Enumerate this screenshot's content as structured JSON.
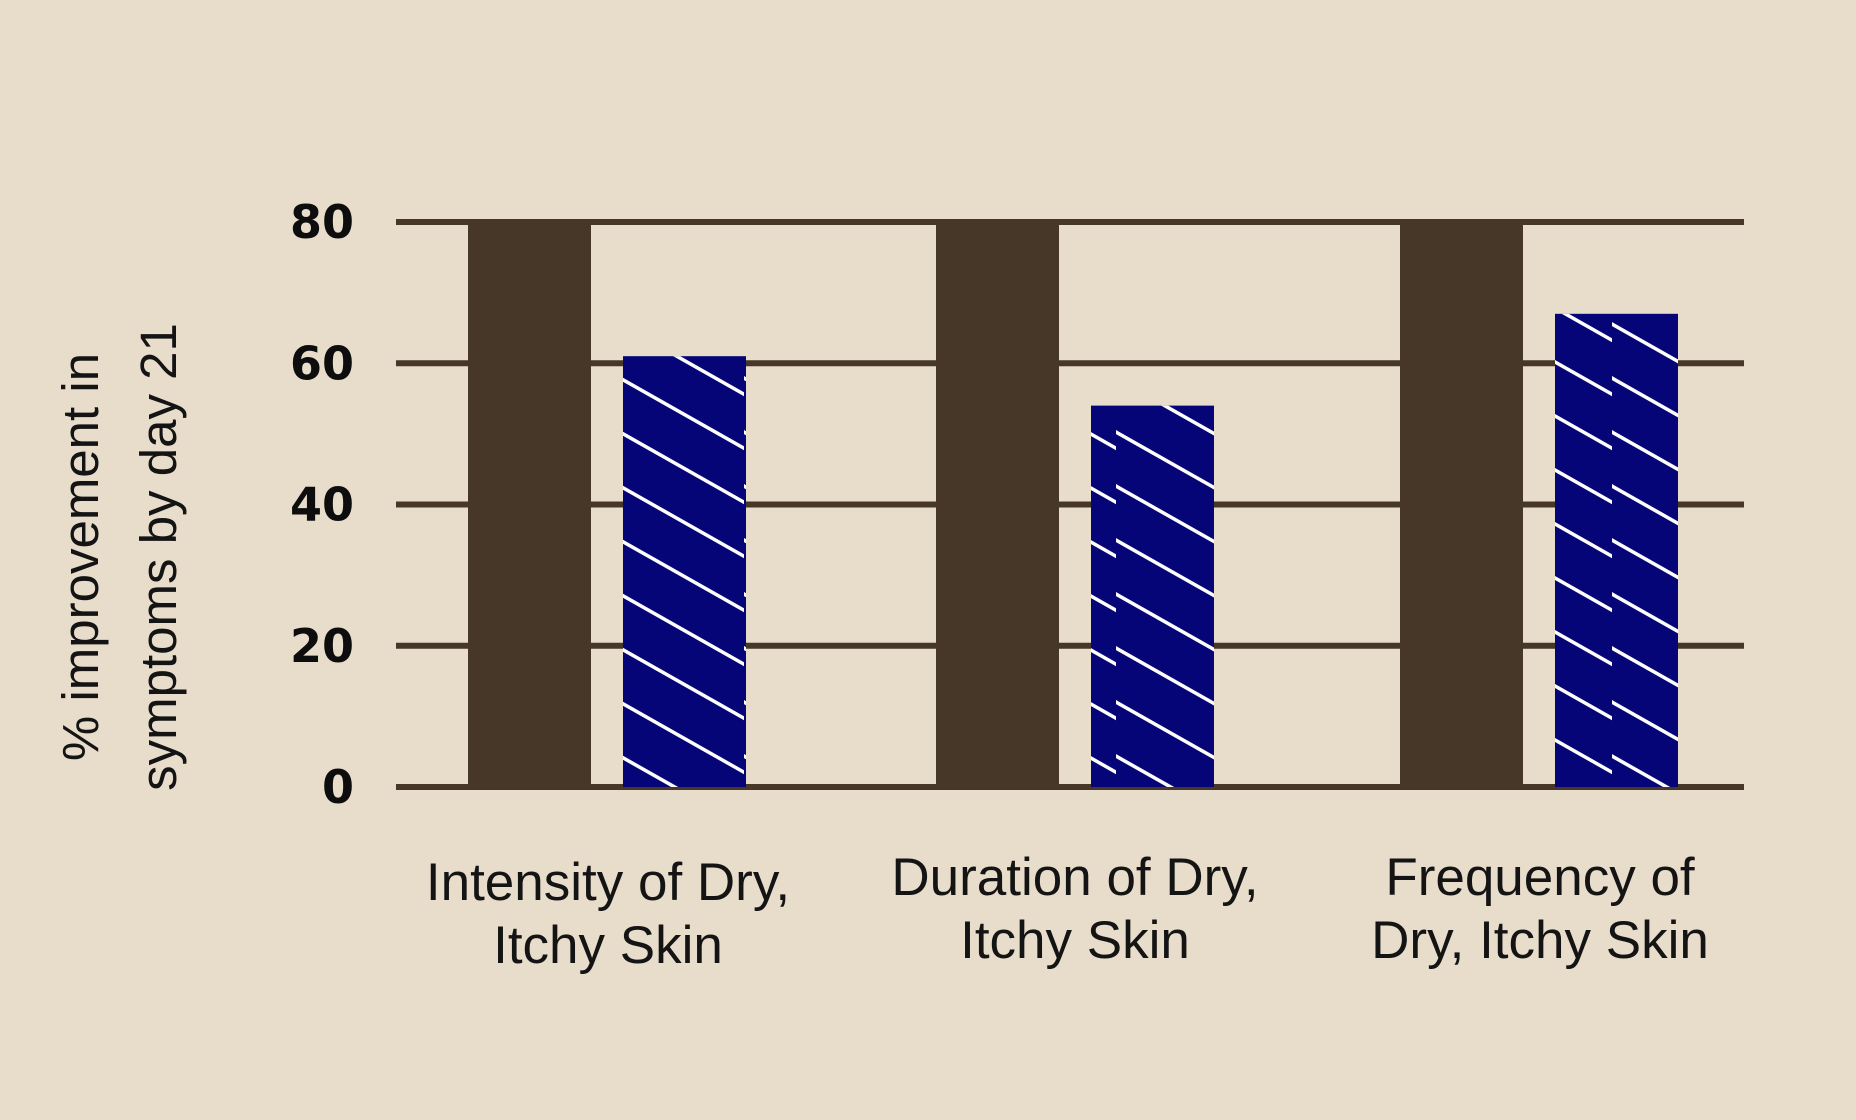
{
  "chart_data": {
    "type": "bar",
    "ylabel_lines": [
      "% improvement in",
      "symptoms by day 21"
    ],
    "xlabel": "",
    "categories": [
      {
        "lines": [
          "Intensity of Dry,",
          "Itchy Skin"
        ]
      },
      {
        "lines": [
          "Duration of Dry,",
          "Itchy Skin"
        ]
      },
      {
        "lines": [
          "Frequency of",
          "Dry, Itchy Skin"
        ]
      }
    ],
    "series": [
      {
        "values": [
          80,
          80,
          80
        ],
        "color": "#463729",
        "pattern": "solid"
      },
      {
        "values": [
          61,
          54,
          67
        ],
        "color": "#050577",
        "pattern": "diagonal-hatch-white"
      }
    ],
    "ylim": [
      0,
      80
    ],
    "yticks": [
      0,
      20,
      40,
      60,
      80
    ],
    "grid": true,
    "legend": "none"
  }
}
